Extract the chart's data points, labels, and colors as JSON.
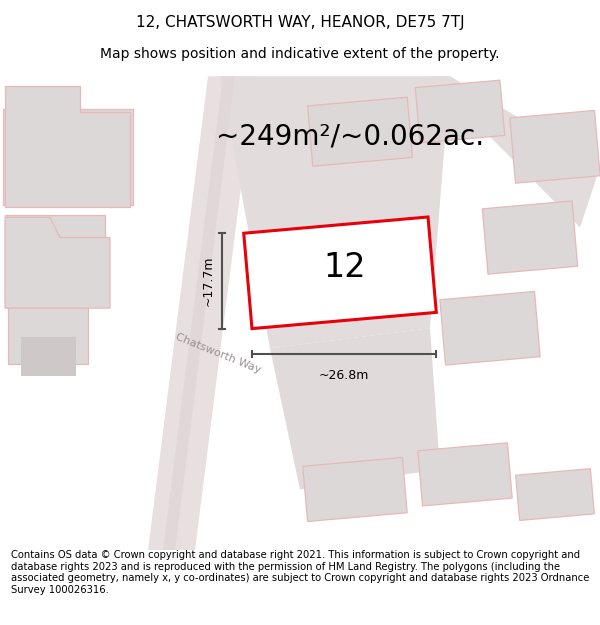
{
  "title": "12, CHATSWORTH WAY, HEANOR, DE75 7TJ",
  "subtitle": "Map shows position and indicative extent of the property.",
  "area_text": "~249m²/~0.062ac.",
  "property_number": "12",
  "dim_width": "~26.8m",
  "dim_height": "~17.7m",
  "road_label": "Chatsworth Way",
  "footer": "Contains OS data © Crown copyright and database right 2021. This information is subject to Crown copyright and database rights 2023 and is reproduced with the permission of HM Land Registry. The polygons (including the associated geometry, namely x, y co-ordinates) are subject to Crown copyright and database rights 2023 Ordnance Survey 100026316.",
  "bg_color": "#ffffff",
  "map_bg": "#f7f2f2",
  "property_outline_color": "#e8000a",
  "dim_line_color": "#505050",
  "road_fill": "#e8e0e0",
  "parcel_fill": "#ddd8d8",
  "parcel_edge": "#e8b8b8",
  "title_fontsize": 11,
  "subtitle_fontsize": 10,
  "area_fontsize": 20,
  "number_fontsize": 24,
  "road_label_fontsize": 8,
  "footer_fontsize": 7.2
}
